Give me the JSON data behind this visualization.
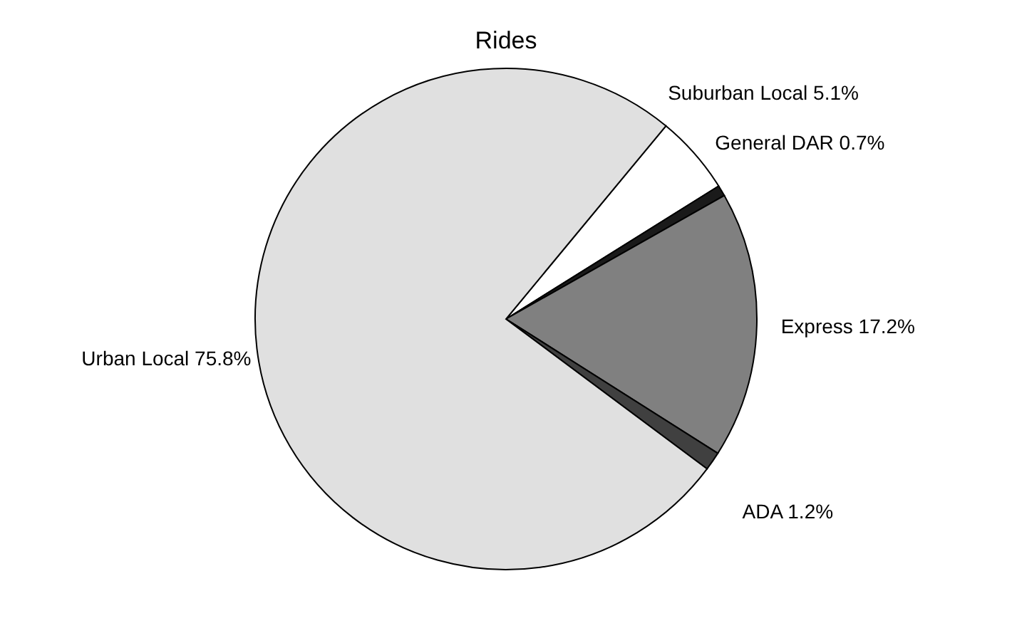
{
  "chart_data": {
    "type": "pie",
    "title": "Rides",
    "categories": [
      "Suburban Local",
      "General DAR",
      "Express",
      "ADA",
      "Urban Local"
    ],
    "values": [
      5.1,
      0.7,
      17.2,
      1.2,
      75.8
    ],
    "colors": [
      "#ffffff",
      "#1a1a1a",
      "#808080",
      "#404040",
      "#e0e0e0"
    ],
    "value_labels": [
      "5.1%",
      "0.7%",
      "17.2%",
      "1.2%",
      "75.8%"
    ]
  }
}
